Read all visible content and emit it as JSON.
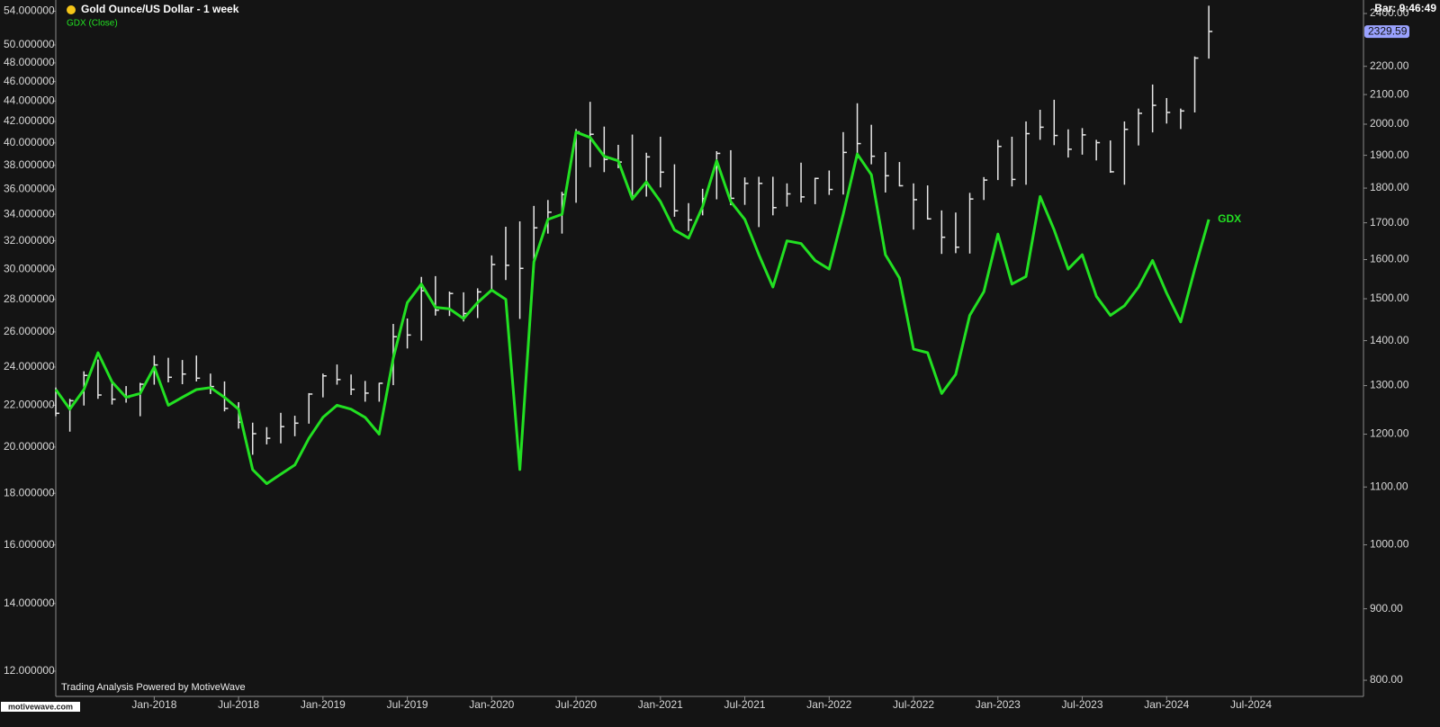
{
  "chart_data": {
    "type": "combo",
    "title": "Gold Ounce/US Dollar - 1 week",
    "bar_time": "Bar: 9:46:49",
    "footer": "Trading Analysis Powered by MotiveWave",
    "logo": "motivewave.com",
    "log_scale": true,
    "grid": false,
    "x": [
      "2017-06",
      "2017-07",
      "2017-08",
      "2017-09",
      "2017-10",
      "2017-11",
      "2017-12",
      "2018-01",
      "2018-02",
      "2018-03",
      "2018-04",
      "2018-05",
      "2018-06",
      "2018-07",
      "2018-08",
      "2018-09",
      "2018-10",
      "2018-11",
      "2018-12",
      "2019-01",
      "2019-02",
      "2019-03",
      "2019-04",
      "2019-05",
      "2019-06",
      "2019-07",
      "2019-08",
      "2019-09",
      "2019-10",
      "2019-11",
      "2019-12",
      "2020-01",
      "2020-02",
      "2020-03",
      "2020-04",
      "2020-05",
      "2020-06",
      "2020-07",
      "2020-08",
      "2020-09",
      "2020-10",
      "2020-11",
      "2020-12",
      "2021-01",
      "2021-02",
      "2021-03",
      "2021-04",
      "2021-05",
      "2021-06",
      "2021-07",
      "2021-08",
      "2021-09",
      "2021-10",
      "2021-11",
      "2021-12",
      "2022-01",
      "2022-02",
      "2022-03",
      "2022-04",
      "2022-05",
      "2022-06",
      "2022-07",
      "2022-08",
      "2022-09",
      "2022-10",
      "2022-11",
      "2022-12",
      "2023-01",
      "2023-02",
      "2023-03",
      "2023-04",
      "2023-05",
      "2023-06",
      "2023-07",
      "2023-08",
      "2023-09",
      "2023-10",
      "2023-11",
      "2023-12",
      "2024-01",
      "2024-02",
      "2024-03",
      "2024-04"
    ],
    "xlim": [
      "2017-06",
      "2025-03"
    ],
    "xticks": [
      {
        "value": "2018-01",
        "label": "Jan-2018"
      },
      {
        "value": "2018-07",
        "label": "Jul-2018"
      },
      {
        "value": "2019-01",
        "label": "Jan-2019"
      },
      {
        "value": "2019-07",
        "label": "Jul-2019"
      },
      {
        "value": "2020-01",
        "label": "Jan-2020"
      },
      {
        "value": "2020-07",
        "label": "Jul-2020"
      },
      {
        "value": "2021-01",
        "label": "Jan-2021"
      },
      {
        "value": "2021-07",
        "label": "Jul-2021"
      },
      {
        "value": "2022-01",
        "label": "Jan-2022"
      },
      {
        "value": "2022-07",
        "label": "Jul-2022"
      },
      {
        "value": "2023-01",
        "label": "Jan-2023"
      },
      {
        "value": "2023-07",
        "label": "Jul-2023"
      },
      {
        "value": "2024-01",
        "label": "Jan-2024"
      },
      {
        "value": "2024-07",
        "label": "Jul-2024"
      }
    ],
    "ylim": [
      11.33,
      55.4
    ],
    "yticks": [
      {
        "value": 12,
        "label": "12.000000"
      },
      {
        "value": 14,
        "label": "14.000000"
      },
      {
        "value": 16,
        "label": "16.000000"
      },
      {
        "value": 18,
        "label": "18.000000"
      },
      {
        "value": 20,
        "label": "20.000000"
      },
      {
        "value": 22,
        "label": "22.000000"
      },
      {
        "value": 24,
        "label": "24.000000"
      },
      {
        "value": 26,
        "label": "26.000000"
      },
      {
        "value": 28,
        "label": "28.000000"
      },
      {
        "value": 30,
        "label": "30.000000"
      },
      {
        "value": 32,
        "label": "32.000000"
      },
      {
        "value": 34,
        "label": "34.000000"
      },
      {
        "value": 36,
        "label": "36.000000"
      },
      {
        "value": 38,
        "label": "38.000000"
      },
      {
        "value": 40,
        "label": "40.000000"
      },
      {
        "value": 42,
        "label": "42.000000"
      },
      {
        "value": 44,
        "label": "44.000000"
      },
      {
        "value": 46,
        "label": "46.000000"
      },
      {
        "value": 48,
        "label": "48.000000"
      },
      {
        "value": 50,
        "label": "50.000000"
      },
      {
        "value": 54,
        "label": "54.000000"
      }
    ],
    "y2lim": [
      779,
      2454
    ],
    "y2ticks": [
      {
        "value": 800,
        "label": "800.00"
      },
      {
        "value": 900,
        "label": "900.00"
      },
      {
        "value": 1000,
        "label": "1000.00"
      },
      {
        "value": 1100,
        "label": "1100.00"
      },
      {
        "value": 1200,
        "label": "1200.00"
      },
      {
        "value": 1300,
        "label": "1300.00"
      },
      {
        "value": 1400,
        "label": "1400.00"
      },
      {
        "value": 1500,
        "label": "1500.00"
      },
      {
        "value": 1600,
        "label": "1600.00"
      },
      {
        "value": 1700,
        "label": "1700.00"
      },
      {
        "value": 1800,
        "label": "1800.00"
      },
      {
        "value": 1900,
        "label": "1900.00"
      },
      {
        "value": 2000,
        "label": "2000.00"
      },
      {
        "value": 2100,
        "label": "2100.00"
      },
      {
        "value": 2200,
        "label": "2200.00"
      },
      {
        "value": 2400,
        "label": "2400.00"
      }
    ],
    "last_price": {
      "value": 2329.59,
      "label": "2329.59"
    },
    "series": [
      {
        "type": "ohlc",
        "axis": "y2",
        "color": "#e8e8e8",
        "marker_color": "#f5c518",
        "values": [
          1242,
          1268,
          1322,
          1280,
          1271,
          1275,
          1303,
          1345,
          1318,
          1325,
          1316,
          1298,
          1252,
          1224,
          1201,
          1192,
          1215,
          1222,
          1282,
          1321,
          1313,
          1292,
          1284,
          1305,
          1409,
          1413,
          1520,
          1472,
          1513,
          1464,
          1517,
          1587,
          1585,
          1577,
          1686,
          1730,
          1781,
          1975,
          1967,
          1887,
          1879,
          1776,
          1895,
          1848,
          1734,
          1708,
          1769,
          1906,
          1770,
          1814,
          1814,
          1743,
          1783,
          1774,
          1829,
          1796,
          1909,
          1937,
          1897,
          1837,
          1807,
          1766,
          1711,
          1660,
          1633,
          1768,
          1824,
          1928,
          1826,
          1969,
          1990,
          1963,
          1919,
          1965,
          1940,
          1849,
          1983,
          2036,
          2063,
          2039,
          2044,
          2230,
          2330
        ],
        "high": [
          1296,
          1272,
          1331,
          1357,
          1306,
          1299,
          1306,
          1366,
          1361,
          1356,
          1366,
          1326,
          1309,
          1265,
          1223,
          1214,
          1243,
          1237,
          1284,
          1326,
          1346,
          1324,
          1310,
          1306,
          1439,
          1452,
          1555,
          1557,
          1518,
          1516,
          1526,
          1611,
          1689,
          1704,
          1748,
          1765,
          1789,
          1984,
          2075,
          1992,
          1933,
          1966,
          1908,
          1959,
          1872,
          1756,
          1798,
          1913,
          1916,
          1832,
          1834,
          1834,
          1814,
          1877,
          1831,
          1853,
          1974,
          2070,
          1998,
          1910,
          1879,
          1814,
          1808,
          1735,
          1729,
          1786,
          1833,
          1949,
          1959,
          2009,
          2048,
          2082,
          1983,
          1987,
          1949,
          1947,
          2009,
          2052,
          2135,
          2088,
          2052,
          2236,
          2431
        ],
        "low": [
          1236,
          1205,
          1258,
          1272,
          1260,
          1264,
          1236,
          1302,
          1307,
          1303,
          1309,
          1282,
          1246,
          1211,
          1160,
          1180,
          1182,
          1196,
          1221,
          1275,
          1302,
          1280,
          1266,
          1266,
          1301,
          1382,
          1400,
          1459,
          1458,
          1445,
          1453,
          1517,
          1547,
          1451,
          1567,
          1670,
          1670,
          1757,
          1863,
          1848,
          1860,
          1764,
          1775,
          1802,
          1717,
          1677,
          1721,
          1767,
          1750,
          1751,
          1688,
          1721,
          1746,
          1758,
          1753,
          1780,
          1781,
          1890,
          1872,
          1787,
          1805,
          1681,
          1709,
          1615,
          1617,
          1616,
          1765,
          1824,
          1805,
          1810,
          1949,
          1932,
          1893,
          1902,
          1884,
          1846,
          1810,
          1931,
          1973,
          2002,
          1984,
          2039,
          2228
        ]
      },
      {
        "type": "line",
        "name": "GDX (Close)",
        "label": "GDX",
        "color": "#22e022",
        "values": [
          22.8,
          21.8,
          22.8,
          24.8,
          23.2,
          22.4,
          22.6,
          24.0,
          22.0,
          22.4,
          22.8,
          22.9,
          22.4,
          21.8,
          19.0,
          18.4,
          18.8,
          19.2,
          20.4,
          21.4,
          22.0,
          21.8,
          21.4,
          20.6,
          24.5,
          27.8,
          29.0,
          27.5,
          27.4,
          26.8,
          27.8,
          28.6,
          28.0,
          19.0,
          30.5,
          33.6,
          34.0,
          41.0,
          40.5,
          38.8,
          38.4,
          35.2,
          36.6,
          35.0,
          32.8,
          32.2,
          34.6,
          38.4,
          35.0,
          33.6,
          31.0,
          28.8,
          32.0,
          31.8,
          30.6,
          30.0,
          34.0,
          39.0,
          37.2,
          31.0,
          29.4,
          25.0,
          24.8,
          22.6,
          23.6,
          27.0,
          28.5,
          32.5,
          29.0,
          29.5,
          35.4,
          32.8,
          30.0,
          31.0,
          28.2,
          27.0,
          27.6,
          28.8,
          30.6,
          28.4,
          26.6,
          30.0,
          33.6
        ]
      }
    ]
  }
}
